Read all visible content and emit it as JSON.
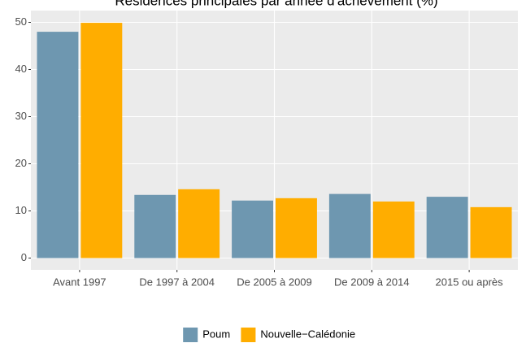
{
  "chart_data": {
    "type": "bar",
    "title": "Résidences principales par année d'achèvement (%)",
    "categories": [
      "Avant 1997",
      "De 1997 à 2004",
      "De 2005 à 2009",
      "De 2009 à 2014",
      "2015 ou après"
    ],
    "series": [
      {
        "name": "Poum",
        "color": "#6e97b0",
        "values": [
          48,
          13.4,
          12.2,
          13.6,
          13.0
        ]
      },
      {
        "name": "Nouvelle−Calédonie",
        "color": "#ffad00",
        "values": [
          49.9,
          14.6,
          12.7,
          12.0,
          10.8
        ]
      }
    ],
    "ylim": [
      -2.5,
      52.5
    ],
    "yticks": [
      0,
      10,
      20,
      30,
      40,
      50
    ],
    "grid": true,
    "legend": "bottom"
  }
}
